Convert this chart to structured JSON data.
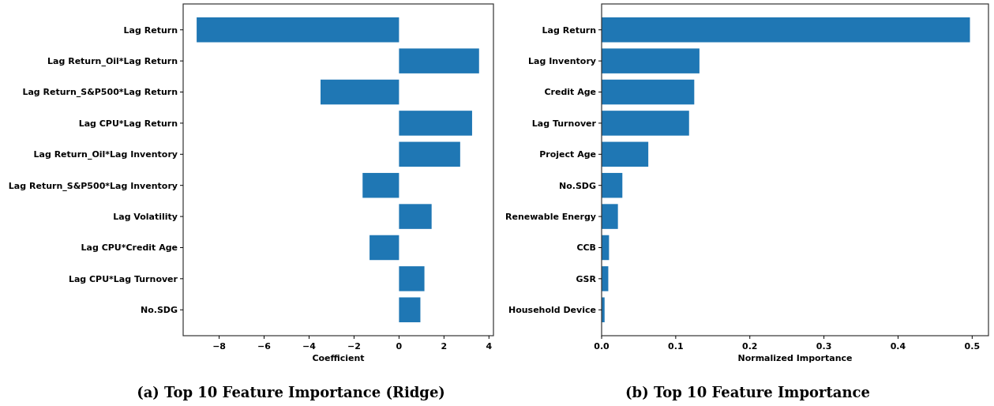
{
  "chart_data": [
    {
      "type": "bar",
      "orientation": "horizontal",
      "title": "(a) Top 10 Feature Importance (Ridge)",
      "xlabel": "Coefficient",
      "color": "#1f77b4",
      "categories": [
        "Lag Return",
        "Lag Return_Oil*Lag Return",
        "Lag Return_S&P500*Lag Return",
        "Lag CPU*Lag Return",
        "Lag Return_Oil*Lag Inventory",
        "Lag Return_S&P500*Lag Inventory",
        "Lag Volatility",
        "Lag CPU*Credit Age",
        "Lag CPU*Lag Turnover",
        "No.SDG"
      ],
      "values": [
        -9.0,
        3.56,
        -3.49,
        3.25,
        2.72,
        -1.62,
        1.45,
        -1.31,
        1.13,
        0.95
      ],
      "xlim": [
        -9.6,
        4.2
      ],
      "xticks": [
        {
          "value": -8,
          "label": "−8"
        },
        {
          "value": -6,
          "label": "−6"
        },
        {
          "value": -4,
          "label": "−4"
        },
        {
          "value": -2,
          "label": "−2"
        },
        0,
        2,
        4
      ]
    },
    {
      "type": "bar",
      "orientation": "horizontal",
      "title": "(b) Top 10 Feature Importance",
      "xlabel": "Normalized Importance",
      "color": "#1f77b4",
      "categories": [
        "Lag Return",
        "Lag Inventory",
        "Credit Age",
        "Lag Turnover",
        "Project Age",
        "No.SDG",
        "Renewable Energy",
        "CCB",
        "GSR",
        "Household Device"
      ],
      "values": [
        0.497,
        0.132,
        0.125,
        0.118,
        0.063,
        0.028,
        0.022,
        0.01,
        0.009,
        0.004
      ],
      "xlim": [
        0,
        0.522
      ],
      "xticks": [
        {
          "value": 0,
          "label": "0.0"
        },
        0.1,
        0.2,
        0.3,
        0.4,
        0.5
      ]
    }
  ]
}
